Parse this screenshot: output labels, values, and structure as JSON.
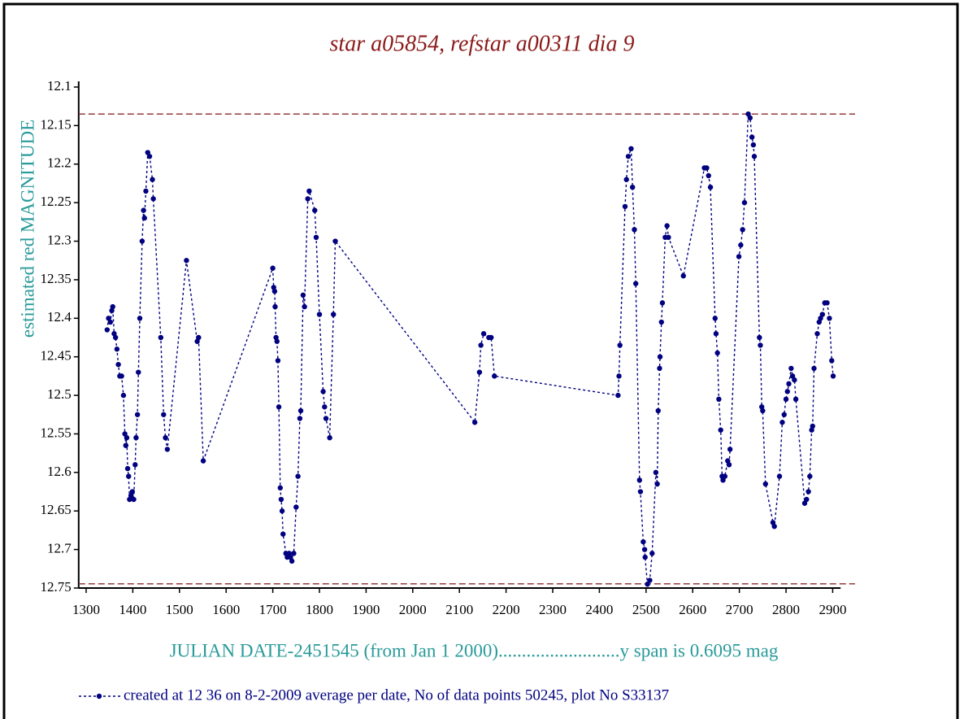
{
  "chart_data": {
    "type": "line",
    "title": "star a05854, refstar a00311  dia  9",
    "ylabel": "estimated red MAGNITUDE",
    "xlabel": "JULIAN DATE-2451545 (from Jan 1 2000)..........................y span is 0.6095 mag",
    "xlim": [
      1284,
      2917
    ],
    "xticks": [
      1300,
      1400,
      1500,
      1600,
      1700,
      1800,
      1900,
      2000,
      2100,
      2200,
      2300,
      2400,
      2500,
      2600,
      2700,
      2800,
      2900
    ],
    "ylim": [
      12.1,
      12.75
    ],
    "yinverted": true,
    "yticks": [
      12.1,
      12.15,
      12.2,
      12.25,
      12.3,
      12.35,
      12.4,
      12.45,
      12.5,
      12.55,
      12.6,
      12.65,
      12.7,
      12.75
    ],
    "hlines": [
      12.135,
      12.7445
    ],
    "hline_color": "#8b2a2a",
    "series": [
      {
        "name": "created at 12 36 on 8-2-2009 average per date, No of data points 50245,  plot No S33137",
        "color": "#000080",
        "x": [
          1345,
          1348,
          1352,
          1355,
          1357,
          1360,
          1363,
          1366,
          1369,
          1372,
          1376,
          1380,
          1383,
          1385,
          1387,
          1389,
          1391,
          1393,
          1396,
          1399,
          1402,
          1405,
          1407,
          1410,
          1412,
          1415,
          1420,
          1423,
          1425,
          1428,
          1432,
          1436,
          1442,
          1444,
          1460,
          1466,
          1470,
          1474,
          1515,
          1538,
          1541,
          1551,
          1700,
          1702,
          1704,
          1705,
          1707,
          1709,
          1711,
          1713,
          1716,
          1718,
          1720,
          1722,
          1728,
          1731,
          1735,
          1738,
          1741,
          1745,
          1750,
          1754,
          1758,
          1760,
          1765,
          1768,
          1775,
          1778,
          1790,
          1793,
          1800,
          1808,
          1811,
          1814,
          1822,
          1830,
          1834,
          2133,
          2143,
          2146,
          2152,
          2163,
          2168,
          2175,
          2440,
          2442,
          2444,
          2455,
          2458,
          2462,
          2468,
          2471,
          2475,
          2478,
          2486,
          2488,
          2494,
          2497,
          2498,
          2503,
          2508,
          2513,
          2521,
          2524,
          2526,
          2529,
          2530,
          2533,
          2535,
          2541,
          2545,
          2548,
          2580,
          2625,
          2630,
          2634,
          2638,
          2648,
          2650,
          2653,
          2656,
          2660,
          2663,
          2665,
          2669,
          2675,
          2678,
          2680,
          2699,
          2703,
          2707,
          2711,
          2719,
          2723,
          2727,
          2730,
          2732,
          2743,
          2745,
          2748,
          2750,
          2756,
          2772,
          2775,
          2786,
          2792,
          2796,
          2800,
          2803,
          2806,
          2811,
          2814,
          2818,
          2821,
          2840,
          2844,
          2848,
          2851,
          2855,
          2857,
          2860,
          2867,
          2871,
          2874,
          2878,
          2883,
          2888,
          2893,
          2898,
          2901
        ],
        "values": [
          12.415,
          12.4,
          12.405,
          12.39,
          12.385,
          12.42,
          12.425,
          12.44,
          12.46,
          12.475,
          12.475,
          12.5,
          12.55,
          12.565,
          12.555,
          12.595,
          12.605,
          12.635,
          12.63,
          12.625,
          12.635,
          12.59,
          12.555,
          12.525,
          12.47,
          12.4,
          12.3,
          12.26,
          12.27,
          12.235,
          12.185,
          12.19,
          12.22,
          12.245,
          12.425,
          12.525,
          12.555,
          12.57,
          12.325,
          12.43,
          12.425,
          12.585,
          12.335,
          12.36,
          12.365,
          12.385,
          12.425,
          12.43,
          12.455,
          12.515,
          12.62,
          12.635,
          12.65,
          12.68,
          12.705,
          12.71,
          12.705,
          12.71,
          12.715,
          12.705,
          12.645,
          12.605,
          12.53,
          12.52,
          12.37,
          12.385,
          12.245,
          12.235,
          12.26,
          12.295,
          12.395,
          12.495,
          12.515,
          12.53,
          12.555,
          12.395,
          12.3,
          12.535,
          12.47,
          12.435,
          12.42,
          12.425,
          12.425,
          12.475,
          12.5,
          12.475,
          12.435,
          12.255,
          12.22,
          12.19,
          12.18,
          12.23,
          12.285,
          12.355,
          12.61,
          12.625,
          12.69,
          12.7,
          12.71,
          12.745,
          12.74,
          12.705,
          12.6,
          12.615,
          12.52,
          12.465,
          12.45,
          12.405,
          12.38,
          12.295,
          12.28,
          12.295,
          12.345,
          12.205,
          12.205,
          12.215,
          12.23,
          12.4,
          12.42,
          12.445,
          12.505,
          12.545,
          12.605,
          12.61,
          12.605,
          12.585,
          12.59,
          12.57,
          12.32,
          12.305,
          12.285,
          12.25,
          12.135,
          12.14,
          12.165,
          12.175,
          12.19,
          12.425,
          12.435,
          12.515,
          12.52,
          12.615,
          12.665,
          12.67,
          12.605,
          12.535,
          12.525,
          12.505,
          12.495,
          12.485,
          12.465,
          12.475,
          12.48,
          12.505,
          12.64,
          12.635,
          12.625,
          12.605,
          12.545,
          12.54,
          12.465,
          12.42,
          12.405,
          12.4,
          12.395,
          12.38,
          12.38,
          12.4,
          12.455,
          12.475
        ]
      }
    ]
  }
}
